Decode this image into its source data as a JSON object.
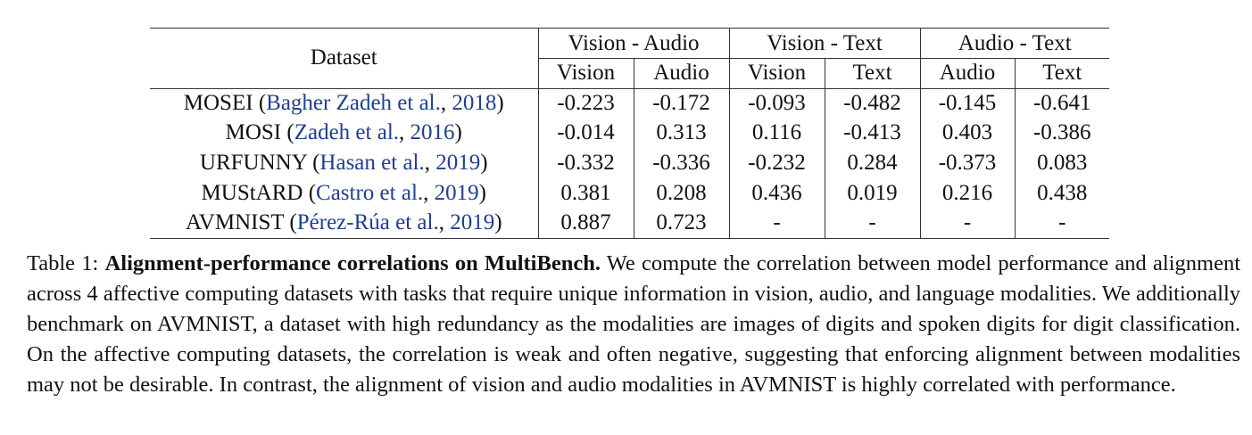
{
  "table": {
    "dataset_header": "Dataset",
    "groups": [
      {
        "label": "Vision - Audio",
        "cols": [
          "Vision",
          "Audio"
        ]
      },
      {
        "label": "Vision - Text",
        "cols": [
          "Vision",
          "Text"
        ]
      },
      {
        "label": "Audio - Text",
        "cols": [
          "Audio",
          "Text"
        ]
      }
    ],
    "rows": [
      {
        "name": "MOSEI",
        "cite_open": "(",
        "authors": "Bagher Zadeh et al.",
        "sep": ", ",
        "year": "2018",
        "cite_close": ")",
        "values": [
          "-0.223",
          "-0.172",
          "-0.093",
          "-0.482",
          "-0.145",
          "-0.641"
        ]
      },
      {
        "name": "MOSI",
        "cite_open": "(",
        "authors": "Zadeh et al.",
        "sep": ", ",
        "year": "2016",
        "cite_close": ")",
        "values": [
          "-0.014",
          "0.313",
          "0.116",
          "-0.413",
          "0.403",
          "-0.386"
        ]
      },
      {
        "name": "URFUNNY",
        "cite_open": "(",
        "authors": "Hasan et al.",
        "sep": ", ",
        "year": "2019",
        "cite_close": ")",
        "values": [
          "-0.332",
          "-0.336",
          "-0.232",
          "0.284",
          "-0.373",
          "0.083"
        ]
      },
      {
        "name": "MUStARD",
        "cite_open": "(",
        "authors": "Castro et al.",
        "sep": ", ",
        "year": "2019",
        "cite_close": ")",
        "values": [
          "0.381",
          "0.208",
          "0.436",
          "0.019",
          "0.216",
          "0.438"
        ]
      },
      {
        "name": "AVMNIST",
        "cite_open": "(",
        "authors": "Pérez-Rúa et al.",
        "sep": ", ",
        "year": "2019",
        "cite_close": ")",
        "values": [
          "0.887",
          "0.723",
          "-",
          "-",
          "-",
          "-"
        ]
      }
    ]
  },
  "caption": {
    "label": "Table 1: ",
    "title": "Alignment-performance correlations on MultiBench.",
    "body": " We compute the correlation between model performance and alignment across 4 affective computing datasets with tasks that require unique information in vision, audio, and language modalities. We additionally benchmark on AVMNIST, a dataset with high redundancy as the modalities are images of digits and spoken digits for digit classification. On the affective computing datasets, the correlation is weak and often negative, suggesting that enforcing alignment between modalities may not be desirable. In contrast, the alignment of vision and audio modalities in AVMNIST is highly correlated with performance."
  }
}
